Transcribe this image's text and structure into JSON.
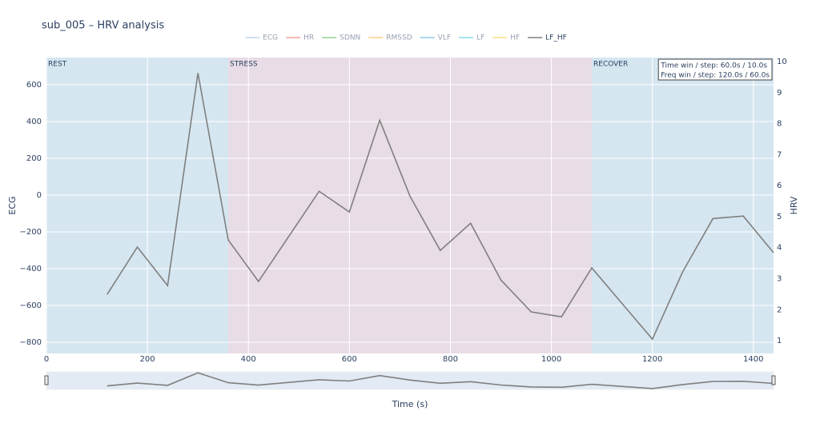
{
  "chart_data": {
    "type": "line",
    "title": "sub_005 – HRV analysis",
    "xlabel": "Time (s)",
    "ylabel": "ECG",
    "y2label": "HRV",
    "xlim": [
      0,
      1440
    ],
    "xticks": [
      0,
      200,
      400,
      600,
      800,
      1000,
      1200,
      1400
    ],
    "ylim": [
      -861,
      748
    ],
    "yticks": [
      {
        "value": -800,
        "label": "−800"
      },
      {
        "value": -600,
        "label": "−600"
      },
      {
        "value": -400,
        "label": "−400"
      },
      {
        "value": -200,
        "label": "−200"
      },
      0,
      200,
      400,
      600
    ],
    "y2lim": [
      0.59,
      10.13
    ],
    "y2ticks": [
      1,
      2,
      3,
      4,
      5,
      6,
      7,
      8,
      9,
      10
    ],
    "grid": true,
    "legend_position": "top",
    "hidden_series": [
      {
        "name": "ECG",
        "color": "#7fa6d6"
      },
      {
        "name": "HR",
        "color": "#e74c3c"
      },
      {
        "name": "SDNN",
        "color": "#2ca02c"
      },
      {
        "name": "RMSSD",
        "color": "#ff9f1c"
      },
      {
        "name": "VLF",
        "color": "#1f9bcf"
      },
      {
        "name": "LF",
        "color": "#17becf"
      },
      {
        "name": "HF",
        "color": "#f1c40f"
      }
    ],
    "series": [
      {
        "name": "LF_HF",
        "color": "#7f7f7f",
        "axis": "y2",
        "x": [
          120,
          180,
          240,
          300,
          360,
          420,
          540,
          600,
          660,
          720,
          780,
          840,
          900,
          960,
          1020,
          1080,
          1200,
          1260,
          1320,
          1380,
          1440
        ],
        "values": [
          2.49,
          4.02,
          2.78,
          9.63,
          4.25,
          2.91,
          5.82,
          5.15,
          8.11,
          5.66,
          3.91,
          4.79,
          2.96,
          1.93,
          1.77,
          3.35,
          1.05,
          3.22,
          4.94,
          5.02,
          3.84
        ]
      }
    ],
    "regions": [
      {
        "label": "REST",
        "start": 0,
        "end": 360,
        "color": "#d5e6f0"
      },
      {
        "label": "STRESS",
        "start": 360,
        "end": 1080,
        "color": "#e8dce6"
      },
      {
        "label": "RECOVER",
        "start": 1080,
        "end": 1440,
        "color": "#d5e6f0"
      }
    ],
    "annotations": [
      "Time win / step: 60.0s / 10.0s",
      "Freq win / step: 120.0s / 60.0s"
    ],
    "range_slider": true
  }
}
